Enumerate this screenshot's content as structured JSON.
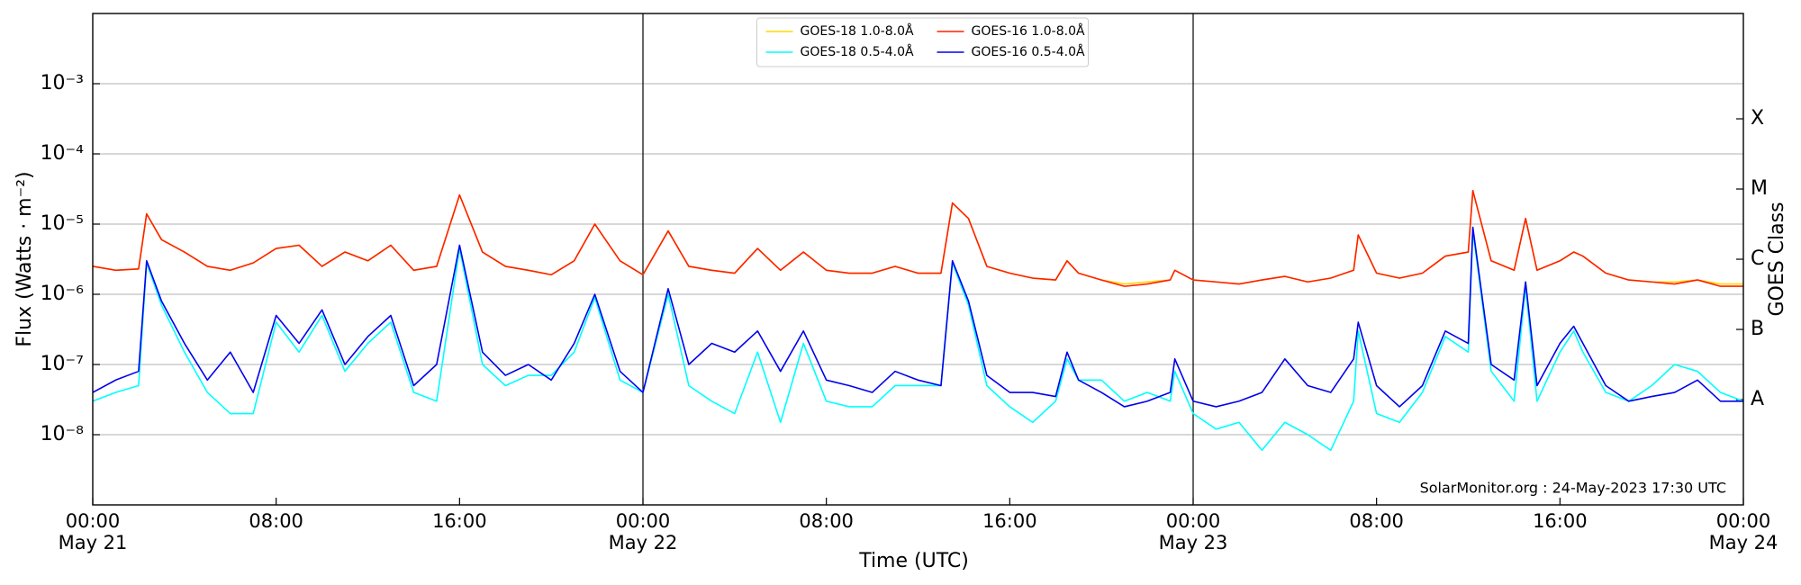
{
  "chart_data": {
    "type": "line",
    "xlabel": "Time (UTC)",
    "ylabel": "Flux (Watts · m⁻²)",
    "y2label": "GOES Class",
    "annotation": "SolarMonitor.org : 24-May-2023 17:30 UTC",
    "ylog": true,
    "grid": "y",
    "legend": "upper center",
    "xlim": [
      0,
      72
    ],
    "xticks": [
      {
        "value": 0,
        "label": "00:00\nMay 21"
      },
      {
        "value": 8,
        "label": "08:00"
      },
      {
        "value": 16,
        "label": "16:00"
      },
      {
        "value": 24,
        "label": "00:00\nMay 22"
      },
      {
        "value": 32,
        "label": "08:00"
      },
      {
        "value": 40,
        "label": "16:00"
      },
      {
        "value": 48,
        "label": "00:00\nMay 23"
      },
      {
        "value": 56,
        "label": "08:00"
      },
      {
        "value": 64,
        "label": "16:00"
      },
      {
        "value": 72,
        "label": "00:00\nMay 24"
      }
    ],
    "vlines": [
      24,
      48
    ],
    "ylim": [
      1e-09,
      0.01
    ],
    "yticks": [
      {
        "value": 1e-08,
        "label": "10⁻⁸"
      },
      {
        "value": 1e-07,
        "label": "10⁻⁷"
      },
      {
        "value": 1e-06,
        "label": "10⁻⁶"
      },
      {
        "value": 1e-05,
        "label": "10⁻⁵"
      },
      {
        "value": 0.0001,
        "label": "10⁻⁴"
      },
      {
        "value": 0.001,
        "label": "10⁻³"
      }
    ],
    "y2lim": [
      1e-09,
      0.01
    ],
    "y2ticks": [
      {
        "value": 3.16e-08,
        "label": "A"
      },
      {
        "value": 3.16e-07,
        "label": "B"
      },
      {
        "value": 3.16e-06,
        "label": "C"
      },
      {
        "value": 3.16e-05,
        "label": "M"
      },
      {
        "value": 0.000316,
        "label": "X"
      }
    ],
    "x": [
      0,
      1,
      2,
      2.35,
      3,
      4,
      5,
      6,
      7,
      8,
      9,
      10,
      11,
      12,
      13,
      14,
      15,
      16,
      17,
      18,
      19,
      20,
      21,
      21.9,
      23,
      24,
      25.1,
      26,
      27,
      28,
      29,
      30,
      31,
      32,
      33,
      34,
      35,
      36,
      37,
      37.5,
      38.2,
      39,
      40,
      41,
      42,
      42.5,
      43,
      44,
      45,
      46,
      47,
      47.2,
      48,
      49,
      50,
      51,
      52,
      53,
      54,
      55,
      55.2,
      56,
      57,
      58,
      59,
      60,
      60.2,
      61,
      62,
      62.5,
      63,
      64,
      64.6,
      65,
      66,
      67,
      68,
      69,
      70,
      71,
      72
    ],
    "series": [
      {
        "name": "GOES-18 1.0-8.0Å",
        "color": "#ffd700",
        "values": [
          2.5e-06,
          2.2e-06,
          2.3e-06,
          1.4e-05,
          6e-06,
          4e-06,
          2.5e-06,
          2.2e-06,
          2.8e-06,
          4.5e-06,
          5e-06,
          2.5e-06,
          4e-06,
          3e-06,
          5e-06,
          2.2e-06,
          2.5e-06,
          2.6e-05,
          4e-06,
          2.5e-06,
          2.2e-06,
          1.9e-06,
          3e-06,
          1e-05,
          3e-06,
          1.9e-06,
          8e-06,
          2.5e-06,
          2.2e-06,
          2e-06,
          4.5e-06,
          2.2e-06,
          4e-06,
          2.2e-06,
          2e-06,
          2e-06,
          2.5e-06,
          2e-06,
          2e-06,
          2e-05,
          1.2e-05,
          2.5e-06,
          2e-06,
          1.7e-06,
          1.6e-06,
          3e-06,
          2e-06,
          1.6e-06,
          1.4e-06,
          1.5e-06,
          1.6e-06,
          2.2e-06,
          1.6e-06,
          1.5e-06,
          1.4e-06,
          1.6e-06,
          1.8e-06,
          1.5e-06,
          1.7e-06,
          2.2e-06,
          7e-06,
          2e-06,
          1.7e-06,
          2e-06,
          3.5e-06,
          4e-06,
          3e-05,
          3e-06,
          2.2e-06,
          1.2e-05,
          2.2e-06,
          3e-06,
          4e-06,
          3.5e-06,
          2e-06,
          1.6e-06,
          1.5e-06,
          1.5e-06,
          1.6e-06,
          1.4e-06,
          1.4e-06
        ]
      },
      {
        "name": "GOES-18 0.5-4.0Å",
        "color": "#00ffff",
        "values": [
          3e-08,
          4e-08,
          5e-08,
          2.8e-06,
          7e-07,
          1.5e-07,
          4e-08,
          2e-08,
          2e-08,
          4e-07,
          1.5e-07,
          5e-07,
          8e-08,
          2e-07,
          4e-07,
          4e-08,
          3e-08,
          4.5e-06,
          1e-07,
          5e-08,
          7e-08,
          7e-08,
          1.5e-07,
          9e-07,
          6e-08,
          4e-08,
          1e-06,
          5e-08,
          3e-08,
          2e-08,
          1.5e-07,
          1.5e-08,
          2e-07,
          3e-08,
          2.5e-08,
          2.5e-08,
          5e-08,
          5e-08,
          5e-08,
          2.8e-06,
          7e-07,
          5e-08,
          2.5e-08,
          1.5e-08,
          3e-08,
          1.2e-07,
          6e-08,
          6e-08,
          3e-08,
          4e-08,
          3e-08,
          8e-08,
          2e-08,
          1.2e-08,
          1.5e-08,
          6e-09,
          1.5e-08,
          1e-08,
          6e-09,
          3e-08,
          3e-07,
          2e-08,
          1.5e-08,
          4e-08,
          2.5e-07,
          1.5e-07,
          8e-06,
          8e-08,
          3e-08,
          1.3e-06,
          3e-08,
          1.5e-07,
          3e-07,
          1.5e-07,
          4e-08,
          3e-08,
          5e-08,
          1e-07,
          8e-08,
          4e-08,
          3e-08
        ]
      },
      {
        "name": "GOES-16 1.0-8.0Å",
        "color": "#ff2000",
        "values": [
          2.5e-06,
          2.2e-06,
          2.3e-06,
          1.4e-05,
          6e-06,
          4e-06,
          2.5e-06,
          2.2e-06,
          2.8e-06,
          4.5e-06,
          5e-06,
          2.5e-06,
          4e-06,
          3e-06,
          5e-06,
          2.2e-06,
          2.5e-06,
          2.6e-05,
          4e-06,
          2.5e-06,
          2.2e-06,
          1.9e-06,
          3e-06,
          1e-05,
          3e-06,
          1.9e-06,
          8e-06,
          2.5e-06,
          2.2e-06,
          2e-06,
          4.5e-06,
          2.2e-06,
          4e-06,
          2.2e-06,
          2e-06,
          2e-06,
          2.5e-06,
          2e-06,
          2e-06,
          2e-05,
          1.2e-05,
          2.5e-06,
          2e-06,
          1.7e-06,
          1.6e-06,
          3e-06,
          2e-06,
          1.6e-06,
          1.3e-06,
          1.4e-06,
          1.6e-06,
          2.2e-06,
          1.6e-06,
          1.5e-06,
          1.4e-06,
          1.6e-06,
          1.8e-06,
          1.5e-06,
          1.7e-06,
          2.2e-06,
          7e-06,
          2e-06,
          1.7e-06,
          2e-06,
          3.5e-06,
          4e-06,
          3e-05,
          3e-06,
          2.2e-06,
          1.2e-05,
          2.2e-06,
          3e-06,
          4e-06,
          3.5e-06,
          2e-06,
          1.6e-06,
          1.5e-06,
          1.4e-06,
          1.6e-06,
          1.3e-06,
          1.3e-06
        ]
      },
      {
        "name": "GOES-16 0.5-4.0Å",
        "color": "#0000ee",
        "values": [
          4e-08,
          6e-08,
          8e-08,
          3e-06,
          8e-07,
          2e-07,
          6e-08,
          1.5e-07,
          4e-08,
          5e-07,
          2e-07,
          6e-07,
          1e-07,
          2.5e-07,
          5e-07,
          5e-08,
          1e-07,
          5e-06,
          1.5e-07,
          7e-08,
          1e-07,
          6e-08,
          2e-07,
          1e-06,
          8e-08,
          4e-08,
          1.2e-06,
          1e-07,
          2e-07,
          1.5e-07,
          3e-07,
          8e-08,
          3e-07,
          6e-08,
          5e-08,
          4e-08,
          8e-08,
          6e-08,
          5e-08,
          3e-06,
          8e-07,
          7e-08,
          4e-08,
          4e-08,
          3.5e-08,
          1.5e-07,
          6e-08,
          4e-08,
          2.5e-08,
          3e-08,
          4e-08,
          1.2e-07,
          3e-08,
          2.5e-08,
          3e-08,
          4e-08,
          1.2e-07,
          5e-08,
          4e-08,
          1.2e-07,
          4e-07,
          5e-08,
          2.5e-08,
          5e-08,
          3e-07,
          2e-07,
          9e-06,
          1e-07,
          6e-08,
          1.5e-06,
          5e-08,
          2e-07,
          3.5e-07,
          2e-07,
          5e-08,
          3e-08,
          3.5e-08,
          4e-08,
          6e-08,
          3e-08,
          3e-08
        ]
      }
    ]
  }
}
